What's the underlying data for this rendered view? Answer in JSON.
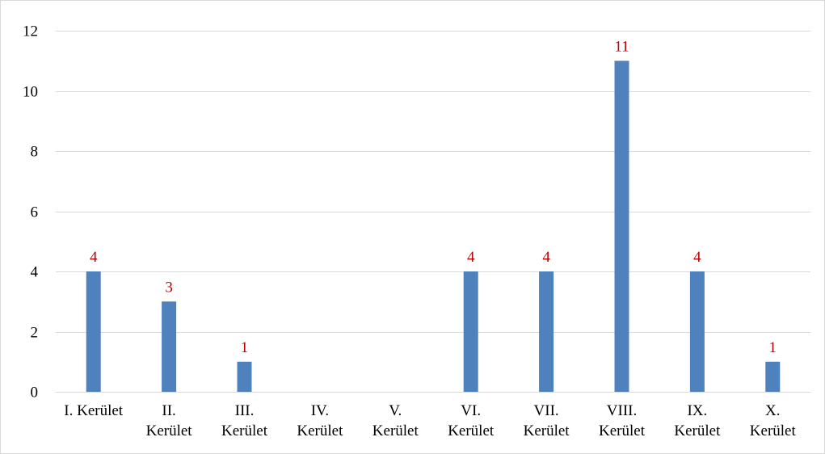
{
  "chart_data": {
    "type": "bar",
    "title": "",
    "xlabel": "",
    "ylabel": "",
    "categories": [
      [
        "I. Kerület"
      ],
      [
        "II.",
        "Kerület"
      ],
      [
        "III.",
        "Kerület"
      ],
      [
        "IV.",
        "Kerület"
      ],
      [
        "V.",
        "Kerület"
      ],
      [
        "VI.",
        "Kerület"
      ],
      [
        "VII.",
        "Kerület"
      ],
      [
        "VIII.",
        "Kerület"
      ],
      [
        "IX.",
        "Kerület"
      ],
      [
        "X.",
        "Kerület"
      ]
    ],
    "values": [
      4,
      3,
      1,
      0,
      0,
      4,
      4,
      11,
      4,
      1
    ],
    "data_labels": [
      "4",
      "3",
      "1",
      "",
      "",
      "4",
      "4",
      "11",
      "4",
      "1"
    ],
    "ylim": [
      0,
      12
    ],
    "yticks": [
      0,
      2,
      4,
      6,
      8,
      10,
      12
    ],
    "grid": true,
    "legend": "none",
    "colors": {
      "bar": "#4f81bd",
      "data_label": "#c00000",
      "grid": "#d9d9d9",
      "axis": "#d9d9d9"
    }
  }
}
